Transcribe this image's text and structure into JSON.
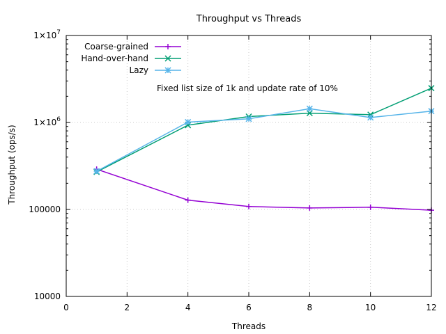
{
  "chart_data": {
    "type": "line",
    "title": "Throughput vs Threads",
    "xlabel": "Threads",
    "ylabel": "Throughput (ops/s)",
    "annotation": "Fixed list size of 1k and update rate of 10%",
    "xlim": [
      0,
      12
    ],
    "ylim": [
      10000,
      10000000
    ],
    "yscale": "log",
    "grid": true,
    "legend_position": "top-left",
    "x_ticks": [
      {
        "value": 0,
        "label": "0"
      },
      {
        "value": 2,
        "label": "2"
      },
      {
        "value": 4,
        "label": "4"
      },
      {
        "value": 6,
        "label": "6"
      },
      {
        "value": 8,
        "label": "8"
      },
      {
        "value": 10,
        "label": "10"
      },
      {
        "value": 12,
        "label": "12"
      }
    ],
    "y_ticks": [
      {
        "value": 10000,
        "label": "10000"
      },
      {
        "value": 100000,
        "label": "100000"
      },
      {
        "value": 1000000,
        "label": "1×10",
        "exp": "6"
      },
      {
        "value": 10000000,
        "label": "1×10",
        "exp": "7"
      }
    ],
    "x": [
      1,
      4,
      6,
      8,
      10,
      12
    ],
    "series": [
      {
        "name": "Coarse-grained",
        "color": "#9400d3",
        "marker": "plus",
        "values": [
          290000,
          128000,
          108000,
          104000,
          106000,
          98000
        ]
      },
      {
        "name": "Hand-over-hand",
        "color": "#009e73",
        "marker": "cross",
        "values": [
          270000,
          930000,
          1170000,
          1280000,
          1230000,
          2480000
        ]
      },
      {
        "name": "Lazy",
        "color": "#56b4e9",
        "marker": "star",
        "values": [
          275000,
          1010000,
          1100000,
          1440000,
          1140000,
          1350000
        ]
      }
    ]
  }
}
